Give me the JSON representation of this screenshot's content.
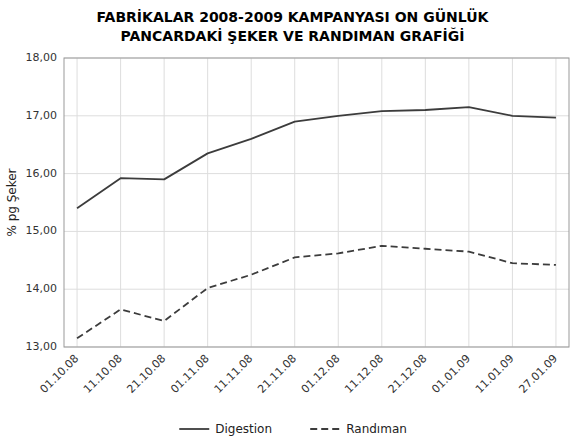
{
  "chart_data": {
    "type": "line",
    "title": "FABRİKALAR 2008-2009 KAMPANYASI ON GÜNLÜK\nPANCARDAKİ ŞEKER VE RANDIMAN GRAFİĞİ",
    "categories": [
      "01.10.08",
      "11.10.08",
      "21.10.08",
      "01.11.08",
      "11.11.08",
      "21.11.08",
      "01.12.08",
      "11.12.08",
      "21.12.08",
      "01.01.09",
      "11.01.09",
      "27.01.09"
    ],
    "y_label": "% pg Şeker",
    "ylim": [
      13.0,
      18.0
    ],
    "yticks": [
      {
        "value": 13.0,
        "label": "13,00"
      },
      {
        "value": 14.0,
        "label": "14,00"
      },
      {
        "value": 15.0,
        "label": "15,00"
      },
      {
        "value": 16.0,
        "label": "16,00"
      },
      {
        "value": 17.0,
        "label": "17,00"
      },
      {
        "value": 18.0,
        "label": "18,00"
      }
    ],
    "series": [
      {
        "name": "Digestion",
        "color": "#3c3c3c",
        "line_style": "solid",
        "values": [
          15.4,
          15.92,
          15.9,
          16.35,
          16.6,
          16.9,
          17.0,
          17.08,
          17.1,
          17.15,
          17.0,
          16.97
        ]
      },
      {
        "name": "Randıman",
        "color": "#3c3c3c",
        "line_style": "dashed",
        "values": [
          13.15,
          13.65,
          13.45,
          14.02,
          14.25,
          14.55,
          14.62,
          14.75,
          14.7,
          14.65,
          14.45,
          14.42
        ]
      }
    ],
    "grid": true,
    "legend": "bottom"
  }
}
